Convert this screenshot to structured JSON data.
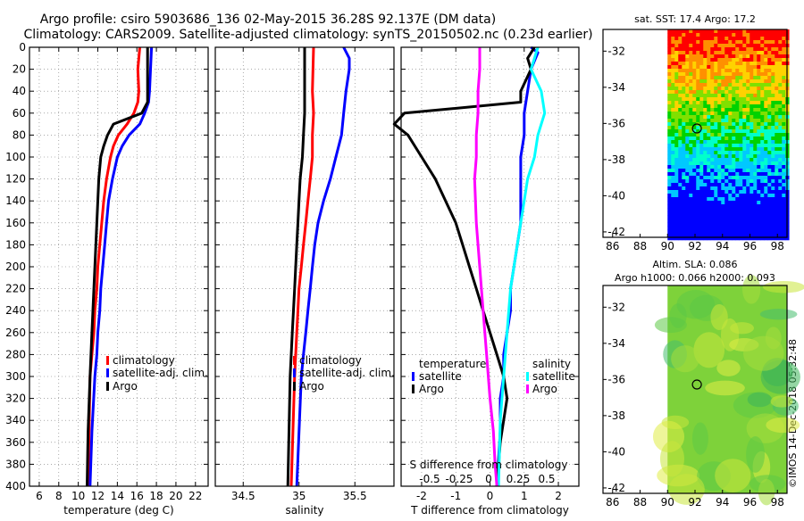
{
  "title_line1": "Argo profile: csiro 5903686_136 02-May-2015 36.28S 92.137E (DM data)",
  "title_line2": "Climatology: CARS2009. Satellite-adjusted climatology: synTS_20150502.nc (0.23d earlier)",
  "imos_stamp": "©IMOS 14-Dec-2018 05:32:48",
  "colors": {
    "clim": "#ff0000",
    "sat": "#0000ff",
    "argo": "#000000",
    "sat_sal": "#00ffff",
    "argo_sal": "#ff00ff"
  },
  "chart_data": [
    {
      "id": "temperature",
      "type": "line",
      "xlabel": "temperature (deg C)",
      "ylabel": "",
      "xlim": [
        5,
        23.3
      ],
      "ylim": [
        0,
        400
      ],
      "y_reversed": true,
      "xticks": [
        6,
        8,
        10,
        12,
        14,
        16,
        18,
        20,
        22
      ],
      "yticks": [
        0,
        20,
        40,
        60,
        80,
        100,
        120,
        140,
        160,
        180,
        200,
        220,
        240,
        260,
        280,
        300,
        320,
        340,
        360,
        380,
        400
      ],
      "grid": true,
      "legend": [
        "climatology",
        "satellite-adj. clim.",
        "Argo"
      ],
      "series": [
        {
          "name": "climatology",
          "color_key": "clim",
          "x": [
            16.3,
            16.1,
            16.2,
            16.1,
            15.7,
            15.0,
            14.1,
            13.6,
            13.3,
            12.9,
            12.6,
            12.4,
            12.2,
            12.0,
            11.9,
            11.7,
            11.6,
            11.4,
            11.2,
            11.1,
            11.0
          ],
          "y": [
            0,
            20,
            40,
            50,
            60,
            70,
            80,
            90,
            100,
            120,
            140,
            160,
            180,
            200,
            220,
            240,
            260,
            280,
            300,
            350,
            400
          ]
        },
        {
          "name": "satellite-adj. clim.",
          "color_key": "sat",
          "x": [
            17.5,
            17.4,
            17.3,
            17.2,
            16.8,
            16.3,
            15.2,
            14.5,
            14.0,
            13.5,
            13.1,
            12.9,
            12.7,
            12.5,
            12.3,
            12.2,
            12.0,
            11.9,
            11.7,
            11.4,
            11.2
          ],
          "y": [
            0,
            20,
            40,
            50,
            60,
            70,
            80,
            90,
            100,
            120,
            140,
            160,
            180,
            200,
            220,
            240,
            260,
            280,
            300,
            350,
            400
          ]
        },
        {
          "name": "Argo",
          "color_key": "argo",
          "x": [
            17.1,
            17.1,
            17.1,
            17.1,
            16.5,
            13.6,
            13.0,
            12.6,
            12.3,
            12.1,
            12.0,
            11.9,
            11.8,
            11.7,
            11.6,
            11.5,
            11.4,
            11.2,
            11.0,
            10.9
          ],
          "y": [
            0,
            20,
            40,
            50,
            60,
            70,
            80,
            90,
            100,
            120,
            140,
            160,
            180,
            200,
            220,
            240,
            260,
            300,
            350,
            400
          ]
        }
      ]
    },
    {
      "id": "salinity",
      "type": "line",
      "xlabel": "salinity",
      "xlim": [
        34.25,
        35.85
      ],
      "ylim": [
        0,
        400
      ],
      "y_reversed": true,
      "xticks": [
        34.5,
        35,
        35.5
      ],
      "tick_labels": [
        "34.5",
        "35",
        "35.5"
      ],
      "grid": true,
      "legend": [
        "climatology",
        "satellite-adj. clim.",
        "Argo"
      ],
      "series": [
        {
          "name": "climatology",
          "color_key": "clim",
          "x": [
            35.13,
            35.12,
            35.13,
            35.12,
            35.12,
            35.1,
            35.08,
            35.06,
            35.04,
            35.02,
            35.0,
            34.99,
            34.98,
            34.97,
            34.96,
            34.93
          ],
          "y": [
            0,
            40,
            60,
            80,
            100,
            120,
            140,
            160,
            180,
            200,
            220,
            240,
            260,
            280,
            300,
            400
          ]
        },
        {
          "name": "satellite-adj. clim.",
          "color_key": "sat",
          "x": [
            35.4,
            35.45,
            35.45,
            35.42,
            35.4,
            35.38,
            35.33,
            35.28,
            35.22,
            35.17,
            35.14,
            35.12,
            35.1,
            35.08,
            35.06,
            35.04,
            35.02,
            34.98
          ],
          "y": [
            0,
            10,
            20,
            40,
            60,
            80,
            100,
            120,
            140,
            160,
            180,
            200,
            220,
            240,
            260,
            280,
            300,
            400
          ]
        },
        {
          "name": "Argo",
          "color_key": "argo",
          "x": [
            35.05,
            35.05,
            35.05,
            35.05,
            35.04,
            35.03,
            35.01,
            35.0,
            34.99,
            34.98,
            34.97,
            34.96,
            34.95,
            34.94,
            34.93,
            34.92,
            34.91,
            34.9
          ],
          "y": [
            0,
            20,
            40,
            60,
            80,
            100,
            120,
            140,
            160,
            180,
            200,
            220,
            240,
            260,
            280,
            300,
            350,
            400
          ]
        }
      ]
    },
    {
      "id": "differences",
      "type": "line",
      "xlabel": "T difference from climatology",
      "top_axis_label": "S difference from climatology",
      "xlim": [
        -2.6,
        2.6
      ],
      "ylim": [
        0,
        400
      ],
      "y_reversed": true,
      "xticks": [
        -2,
        -1,
        0,
        1,
        2
      ],
      "top_ticks": [
        -0.5,
        -0.25,
        0,
        0.25,
        0.5
      ],
      "top_tick_labels": [
        "-0.5",
        "-0.25",
        "0",
        "0.25",
        "0.5"
      ],
      "grid": true,
      "legend_groups": [
        {
          "title": "temperature",
          "items": [
            "satellite",
            "Argo"
          ]
        },
        {
          "title": "salinity",
          "items": [
            "satellite",
            "Argo"
          ]
        }
      ],
      "series": [
        {
          "name": "temperature satellite",
          "color_key": "sat",
          "x": [
            1.2,
            1.4,
            1.2,
            1.1,
            1.0,
            1.0,
            0.9,
            0.9,
            0.9,
            0.9,
            0.8,
            0.7,
            0.6,
            0.6,
            0.5,
            0.4,
            0.4,
            0.3,
            0.3,
            0.2
          ],
          "y": [
            0,
            5,
            20,
            40,
            60,
            80,
            100,
            120,
            140,
            160,
            180,
            200,
            220,
            240,
            260,
            280,
            300,
            320,
            350,
            400
          ]
        },
        {
          "name": "temperature Argo",
          "color_key": "argo",
          "x": [
            1.3,
            1.1,
            1.2,
            0.9,
            0.9,
            -2.5,
            -2.8,
            -2.4,
            -2.0,
            -1.6,
            -1.3,
            -1.0,
            -0.8,
            -0.6,
            -0.4,
            -0.2,
            0.0,
            0.2,
            0.4,
            0.5,
            0.4,
            0.3,
            0.2
          ],
          "y": [
            0,
            10,
            20,
            40,
            50,
            60,
            70,
            80,
            100,
            120,
            140,
            160,
            180,
            200,
            220,
            240,
            260,
            280,
            300,
            320,
            340,
            360,
            400
          ]
        },
        {
          "name": "salinity satellite",
          "color_key": "sat_sal",
          "x": [
            1.4,
            1.3,
            1.2,
            1.5,
            1.6,
            1.4,
            1.3,
            1.1,
            1.0,
            0.9,
            0.8,
            0.7,
            0.6,
            0.5,
            0.4,
            0.3,
            0.25
          ],
          "y": [
            0,
            10,
            20,
            40,
            60,
            80,
            100,
            120,
            140,
            160,
            180,
            200,
            220,
            260,
            300,
            340,
            400
          ]
        },
        {
          "name": "salinity Argo",
          "color_key": "argo_sal",
          "x": [
            -0.3,
            -0.3,
            -0.35,
            -0.35,
            -0.4,
            -0.4,
            -0.45,
            -0.4,
            -0.3,
            -0.2,
            -0.1,
            0.0,
            0.1,
            0.15,
            0.2
          ],
          "y": [
            0,
            20,
            40,
            60,
            80,
            100,
            120,
            160,
            200,
            240,
            280,
            320,
            350,
            380,
            400
          ]
        }
      ]
    },
    {
      "id": "sst_map",
      "type": "heatmap",
      "title": "sat. SST: 17.4 Argo: 17.2",
      "xticks": [
        86,
        88,
        90,
        92,
        94,
        96,
        98
      ],
      "yticks": [
        -32,
        -34,
        -36,
        -38,
        -40,
        -42
      ],
      "xlim": [
        85.3,
        98.7
      ],
      "ylim": [
        -42.3,
        -30.8
      ],
      "data_xlim": [
        90,
        98.7
      ],
      "marker": {
        "lon": 92.137,
        "lat": -36.28
      }
    },
    {
      "id": "sla_map",
      "type": "heatmap",
      "title": "Altim. SLA: 0.086",
      "subtitle": "Argo h1000: 0.066 h2000: 0.093",
      "xticks": [
        86,
        88,
        90,
        92,
        94,
        96,
        98
      ],
      "yticks": [
        -32,
        -34,
        -36,
        -38,
        -40,
        -42
      ],
      "xlim": [
        85.3,
        98.7
      ],
      "ylim": [
        -42.3,
        -30.8
      ],
      "data_xlim": [
        90,
        98.7
      ],
      "marker": {
        "lon": 92.137,
        "lat": -36.28
      }
    }
  ]
}
